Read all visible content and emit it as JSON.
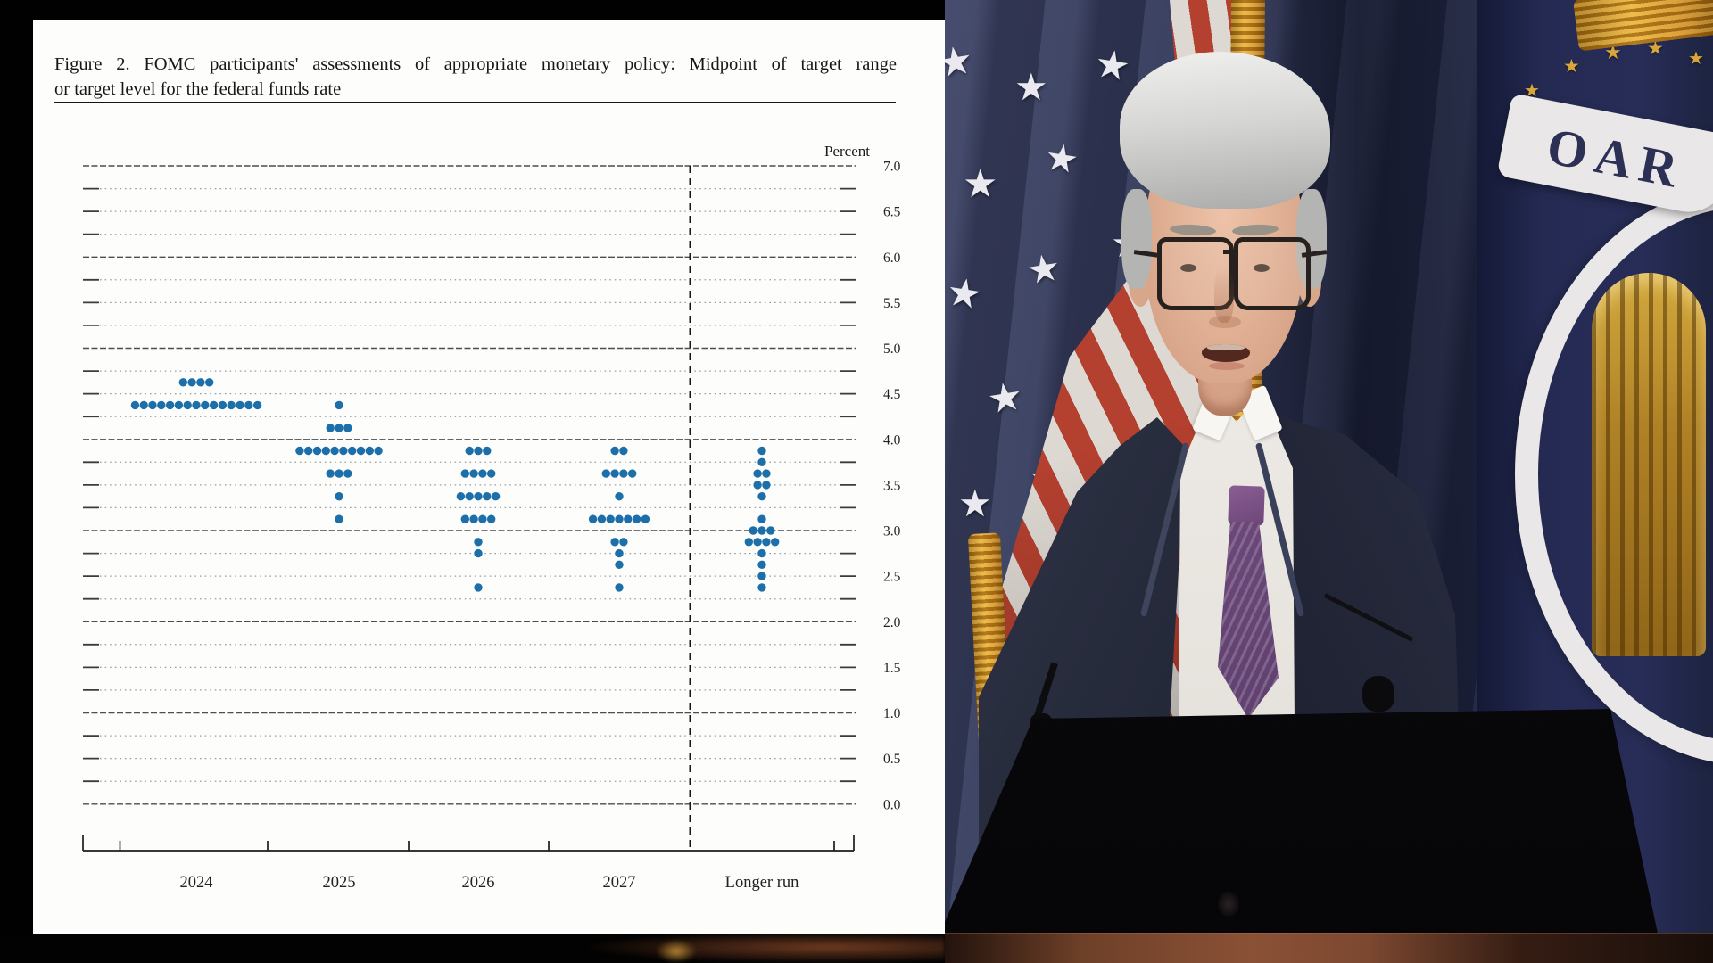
{
  "figure_panel": {
    "title_line1": "Figure 2.  FOMC participants' assessments of appropriate monetary policy:  Midpoint of target range",
    "title_line2": "or target level for the federal funds rate",
    "percent_label": "Percent"
  },
  "chart_data": {
    "type": "scatter",
    "title": "Figure 2. FOMC participants' assessments of appropriate monetary policy: Midpoint of target range or target level for the federal funds rate",
    "ylabel": "Percent",
    "ylim": [
      0.0,
      7.0
    ],
    "ytick_labels": [
      "7.0",
      "6.5",
      "6.0",
      "5.5",
      "5.0",
      "4.5",
      "4.0",
      "3.5",
      "3.0",
      "2.5",
      "2.0",
      "1.5",
      "1.0",
      "0.5",
      "0.0"
    ],
    "grid": {
      "solid_line_interval": 1.0,
      "dotted_line_interval": 0.25,
      "tick_interval": 0.25
    },
    "dot_color": "#1d6fa9",
    "categories": [
      "2024",
      "2025",
      "2026",
      "2027",
      "Longer run"
    ],
    "columns": [
      {
        "label": "2024",
        "dots": [
          {
            "rate": 4.625,
            "count": 4
          },
          {
            "rate": 4.375,
            "count": 15
          }
        ]
      },
      {
        "label": "2025",
        "dots": [
          {
            "rate": 4.375,
            "count": 1
          },
          {
            "rate": 4.125,
            "count": 3
          },
          {
            "rate": 3.875,
            "count": 10
          },
          {
            "rate": 3.625,
            "count": 3
          },
          {
            "rate": 3.375,
            "count": 1
          },
          {
            "rate": 3.125,
            "count": 1
          }
        ]
      },
      {
        "label": "2026",
        "dots": [
          {
            "rate": 3.875,
            "count": 3
          },
          {
            "rate": 3.625,
            "count": 4
          },
          {
            "rate": 3.375,
            "count": 5
          },
          {
            "rate": 3.125,
            "count": 4
          },
          {
            "rate": 2.875,
            "count": 1
          },
          {
            "rate": 2.75,
            "count": 1
          },
          {
            "rate": 2.375,
            "count": 1
          }
        ]
      },
      {
        "label": "2027",
        "dots": [
          {
            "rate": 3.875,
            "count": 2
          },
          {
            "rate": 3.625,
            "count": 4
          },
          {
            "rate": 3.375,
            "count": 1
          },
          {
            "rate": 3.125,
            "count": 7
          },
          {
            "rate": 2.875,
            "count": 2
          },
          {
            "rate": 2.75,
            "count": 1
          },
          {
            "rate": 2.625,
            "count": 1
          },
          {
            "rate": 2.375,
            "count": 1
          }
        ]
      },
      {
        "label": "Longer run",
        "dots": [
          {
            "rate": 3.875,
            "count": 1
          },
          {
            "rate": 3.75,
            "count": 1
          },
          {
            "rate": 3.625,
            "count": 2
          },
          {
            "rate": 3.5,
            "count": 2
          },
          {
            "rate": 3.375,
            "count": 1
          },
          {
            "rate": 3.125,
            "count": 1
          },
          {
            "rate": 3.0,
            "count": 3
          },
          {
            "rate": 2.875,
            "count": 4
          },
          {
            "rate": 2.75,
            "count": 1
          },
          {
            "rate": 2.625,
            "count": 1
          },
          {
            "rate": 2.5,
            "count": 1
          },
          {
            "rate": 2.375,
            "count": 1
          }
        ]
      }
    ]
  },
  "video": {
    "fed_flag_text": "OAR"
  }
}
